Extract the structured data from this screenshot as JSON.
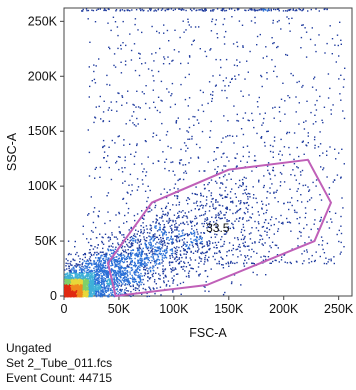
{
  "chart_data": {
    "type": "scatter",
    "xlabel": "FSC-A",
    "ylabel": "SSC-A",
    "xlim": [
      0,
      262144
    ],
    "ylim": [
      0,
      262144
    ],
    "x_ticks": [
      0,
      50000,
      100000,
      150000,
      200000,
      250000
    ],
    "x_tick_labels": [
      "0",
      "50K",
      "100K",
      "150K",
      "200K",
      "250K"
    ],
    "y_ticks": [
      0,
      50000,
      100000,
      150000,
      200000,
      250000
    ],
    "y_tick_labels": [
      "0",
      "50K",
      "100K",
      "150K",
      "200K",
      "250K"
    ],
    "gate": {
      "label": "33.5",
      "label_position": [
        140000,
        62000
      ],
      "color": "#c060b8",
      "vertices": [
        [
          40000,
          30000
        ],
        [
          80000,
          85000
        ],
        [
          150000,
          115000
        ],
        [
          222000,
          124000
        ],
        [
          243000,
          85000
        ],
        [
          228000,
          50000
        ],
        [
          130000,
          10000
        ],
        [
          47000,
          0
        ]
      ]
    },
    "density_colors": [
      "#1f3b9e",
      "#2a6fd6",
      "#3fb0d8",
      "#7fd06a",
      "#e8d83a",
      "#f08a1e",
      "#e02a12"
    ]
  },
  "info": {
    "population": "Ungated",
    "file": "Set 2_Tube_011.fcs",
    "event_count": "Event Count: 44715"
  }
}
